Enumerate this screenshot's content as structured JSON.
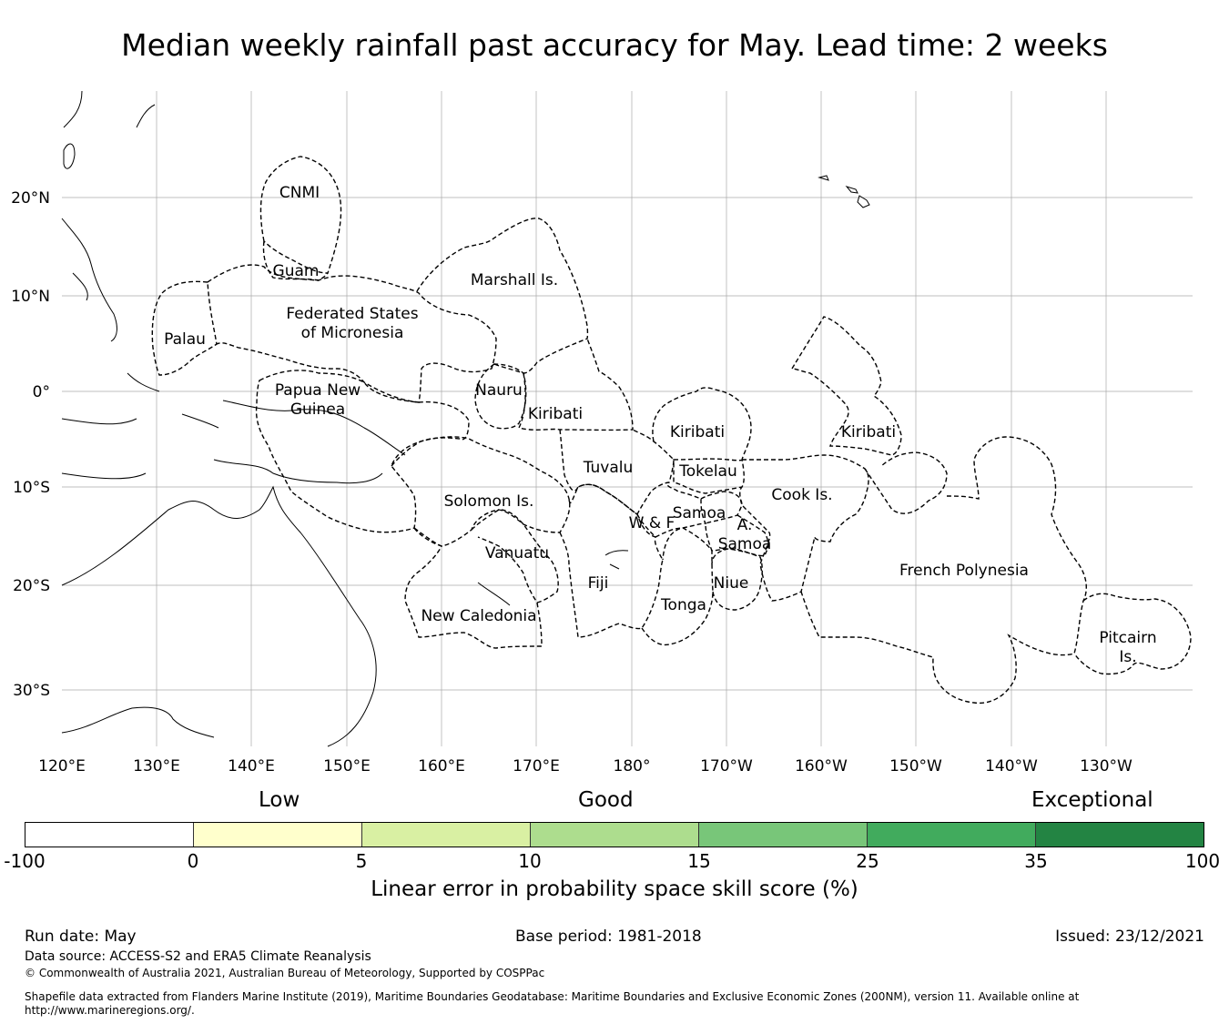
{
  "title": "Median weekly rainfall past accuracy for May. Lead time: 2 weeks",
  "map": {
    "lat_ticks": [
      "20°N",
      "10°N",
      "0°",
      "10°S",
      "20°S",
      "30°S"
    ],
    "lon_ticks": [
      "120°E",
      "130°E",
      "140°E",
      "150°E",
      "160°E",
      "170°E",
      "180°",
      "170°W",
      "160°W",
      "150°W",
      "140°W",
      "130°W"
    ],
    "regions": [
      "CNMI",
      "Guam",
      "Marshall Is.",
      "Federated States",
      "of Micronesia",
      "Palau",
      "Papua New",
      "Guinea",
      "Nauru",
      "Kiribati",
      "Kiribati",
      "Kiribati",
      "Tuvalu",
      "Tokelau",
      "Cook Is.",
      "Solomon Is.",
      "W & F",
      "Samoa",
      "A.",
      "Samoa",
      "Vanuatu",
      "Fiji",
      "Niue",
      "Tonga",
      "French Polynesia",
      "New Caledonia",
      "Pitcairn",
      "Is."
    ],
    "boundary_style": "dashed",
    "grid": true
  },
  "colorbar": {
    "categories": [
      "Low",
      "Good",
      "Exceptional"
    ],
    "colors": [
      "#ffffff",
      "#ffffcc",
      "#d9f0a3",
      "#addd8e",
      "#78c679",
      "#41ab5d",
      "#238443"
    ],
    "ticks": [
      "-100",
      "0",
      "5",
      "10",
      "15",
      "25",
      "35",
      "100"
    ],
    "label": "Linear error in probability space skill score (%)"
  },
  "footer": {
    "run_date": "Run date: May",
    "base_period": "Base period: 1981-2018",
    "issued": "Issued: 23/12/2021",
    "data_source": "Data source: ACCESS-S2 and ERA5 Climate Reanalysis",
    "copyright": "© Commonwealth of Australia 2021, Australian Bureau of Meteorology, Supported by COSPPac",
    "shapefile_note": "Shapefile data extracted from Flanders Marine Institute (2019), Maritime Boundaries Geodatabase: Maritime Boundaries and Exclusive Economic Zones (200NM), version 11. Available online at http://www.marineregions.org/."
  }
}
